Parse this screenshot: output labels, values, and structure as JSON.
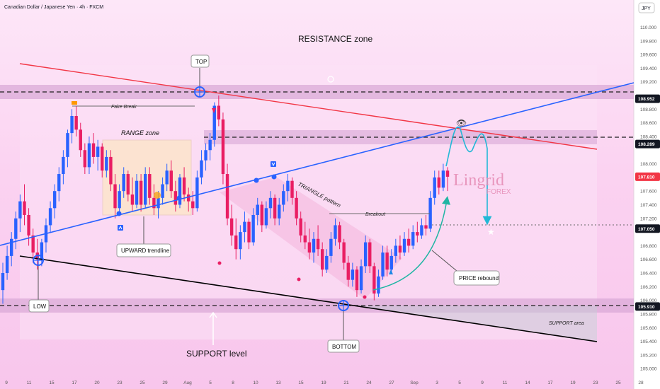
{
  "header": {
    "symbol_title": "Canadian Dollar / Japanese Yen · 4h · FXCM",
    "currency": "JPY"
  },
  "chart_data": {
    "type": "candlestick",
    "title": "Canadian Dollar / Japanese Yen · 4h · FXCM",
    "ylim": [
      104.95,
      110.15
    ],
    "y_ticks": [
      "110.000",
      "109.800",
      "109.600",
      "109.400",
      "109.200",
      "108.800",
      "108.600",
      "108.400",
      "108.000",
      "107.800",
      "107.600",
      "107.400",
      "107.200",
      "106.800",
      "106.600",
      "106.400",
      "106.200",
      "106.000",
      "105.800",
      "105.600",
      "105.400",
      "105.200",
      "105.000"
    ],
    "x_ticks": [
      "9",
      "11",
      "15",
      "17",
      "20",
      "23",
      "25",
      "29",
      "Aug",
      "5",
      "8",
      "10",
      "13",
      "15",
      "19",
      "21",
      "24",
      "27",
      "Sep",
      "3",
      "5",
      "9",
      "11",
      "14",
      "17",
      "19",
      "23",
      "25",
      "28"
    ],
    "price_badges": [
      {
        "label": "108.952",
        "value": 108.952,
        "color": "#131722"
      },
      {
        "label": "108.289",
        "value": 108.289,
        "color": "#131722"
      },
      {
        "label": "107.810",
        "value": 107.81,
        "color": "#f23645"
      },
      {
        "label": "107.050",
        "value": 107.05,
        "color": "#131722"
      },
      {
        "label": "105.910",
        "value": 105.91,
        "color": "#131722"
      }
    ],
    "bull_color": "#2962ff",
    "bear_color": "#e91e63",
    "candles": [
      [
        106.15,
        106.55,
        105.95,
        106.4
      ],
      [
        106.4,
        106.8,
        106.3,
        106.65
      ],
      [
        106.65,
        107.0,
        106.5,
        106.9
      ],
      [
        106.9,
        107.3,
        106.75,
        107.2
      ],
      [
        107.2,
        107.55,
        107.0,
        107.45
      ],
      [
        107.45,
        107.7,
        107.1,
        107.25
      ],
      [
        107.25,
        107.35,
        106.8,
        106.95
      ],
      [
        106.95,
        107.05,
        106.55,
        106.7
      ],
      [
        106.7,
        106.9,
        106.45,
        106.6
      ],
      [
        106.6,
        106.9,
        106.5,
        106.85
      ],
      [
        106.85,
        107.2,
        106.7,
        107.1
      ],
      [
        107.1,
        107.45,
        107.0,
        107.35
      ],
      [
        107.35,
        107.7,
        107.2,
        107.6
      ],
      [
        107.6,
        107.95,
        107.45,
        107.85
      ],
      [
        107.85,
        108.2,
        107.7,
        108.1
      ],
      [
        108.1,
        108.5,
        107.95,
        108.45
      ],
      [
        108.45,
        108.8,
        108.3,
        108.7
      ],
      [
        108.7,
        108.85,
        108.4,
        108.5
      ],
      [
        108.5,
        108.6,
        108.1,
        108.2
      ],
      [
        108.2,
        108.3,
        107.85,
        107.95
      ],
      [
        107.95,
        108.4,
        107.85,
        108.3
      ],
      [
        108.3,
        108.45,
        108.0,
        108.1
      ],
      [
        108.1,
        108.35,
        107.9,
        108.25
      ],
      [
        108.25,
        108.3,
        107.8,
        107.9
      ],
      [
        107.9,
        108.2,
        107.8,
        108.1
      ],
      [
        108.1,
        108.2,
        107.6,
        107.7
      ],
      [
        107.7,
        107.85,
        107.2,
        107.35
      ],
      [
        107.35,
        107.7,
        107.25,
        107.6
      ],
      [
        107.6,
        107.95,
        107.5,
        107.85
      ],
      [
        107.85,
        107.9,
        107.45,
        107.55
      ],
      [
        107.55,
        107.8,
        107.3,
        107.4
      ],
      [
        107.4,
        107.85,
        107.35,
        107.75
      ],
      [
        107.75,
        107.85,
        107.3,
        107.4
      ],
      [
        107.4,
        107.95,
        107.35,
        107.85
      ],
      [
        107.85,
        107.95,
        107.4,
        107.5
      ],
      [
        107.5,
        107.7,
        107.25,
        107.35
      ],
      [
        107.35,
        107.6,
        107.2,
        107.5
      ],
      [
        107.5,
        107.8,
        107.4,
        107.7
      ],
      [
        107.7,
        108.0,
        107.6,
        107.9
      ],
      [
        107.9,
        108.05,
        107.5,
        107.6
      ],
      [
        107.6,
        107.75,
        107.3,
        107.4
      ],
      [
        107.4,
        107.85,
        107.35,
        107.8
      ],
      [
        107.8,
        107.95,
        107.45,
        107.55
      ],
      [
        107.55,
        107.65,
        107.3,
        107.45
      ],
      [
        107.45,
        107.6,
        107.25,
        107.35
      ],
      [
        107.35,
        107.9,
        107.3,
        107.8
      ],
      [
        107.8,
        108.2,
        107.7,
        108.05
      ],
      [
        108.05,
        108.3,
        107.9,
        108.2
      ],
      [
        108.2,
        108.45,
        108.05,
        108.35
      ],
      [
        108.35,
        108.9,
        108.25,
        108.85
      ],
      [
        108.85,
        109.0,
        108.55,
        108.65
      ],
      [
        108.65,
        108.75,
        107.7,
        107.85
      ],
      [
        107.85,
        108.0,
        107.1,
        107.2
      ],
      [
        107.2,
        107.4,
        106.8,
        106.95
      ],
      [
        106.95,
        107.2,
        106.6,
        106.75
      ],
      [
        106.75,
        107.1,
        106.6,
        107.0
      ],
      [
        107.0,
        107.3,
        106.85,
        107.15
      ],
      [
        107.15,
        107.2,
        106.75,
        106.85
      ],
      [
        106.85,
        107.35,
        106.8,
        107.25
      ],
      [
        107.25,
        107.5,
        107.1,
        107.4
      ],
      [
        107.4,
        107.45,
        107.0,
        107.1
      ],
      [
        107.1,
        107.45,
        107.05,
        107.35
      ],
      [
        107.35,
        107.6,
        107.2,
        107.5
      ],
      [
        107.5,
        107.55,
        107.1,
        107.2
      ],
      [
        107.2,
        107.5,
        107.1,
        107.4
      ],
      [
        107.4,
        107.7,
        107.3,
        107.6
      ],
      [
        107.6,
        107.85,
        107.45,
        107.75
      ],
      [
        107.75,
        107.8,
        107.4,
        107.5
      ],
      [
        107.5,
        107.6,
        107.1,
        107.2
      ],
      [
        107.2,
        107.3,
        106.85,
        106.95
      ],
      [
        106.95,
        107.15,
        106.75,
        106.85
      ],
      [
        106.85,
        107.05,
        106.6,
        106.7
      ],
      [
        106.7,
        107.0,
        106.55,
        106.9
      ],
      [
        106.9,
        107.1,
        106.65,
        106.75
      ],
      [
        106.75,
        106.85,
        106.35,
        106.45
      ],
      [
        106.45,
        106.75,
        106.4,
        106.65
      ],
      [
        106.65,
        107.0,
        106.55,
        106.9
      ],
      [
        106.9,
        107.2,
        106.8,
        107.1
      ],
      [
        107.1,
        107.15,
        106.75,
        106.85
      ],
      [
        106.85,
        106.9,
        106.45,
        106.55
      ],
      [
        106.55,
        106.65,
        106.2,
        106.3
      ],
      [
        106.3,
        106.55,
        106.2,
        106.45
      ],
      [
        106.45,
        106.5,
        106.05,
        106.15
      ],
      [
        106.15,
        106.6,
        106.1,
        106.5
      ],
      [
        106.5,
        106.95,
        106.4,
        106.85
      ],
      [
        106.85,
        106.9,
        106.4,
        106.5
      ],
      [
        106.5,
        106.55,
        106.0,
        106.1
      ],
      [
        106.1,
        106.45,
        106.05,
        106.35
      ],
      [
        106.35,
        106.8,
        106.3,
        106.7
      ],
      [
        106.7,
        106.8,
        106.35,
        106.45
      ],
      [
        106.45,
        106.75,
        106.4,
        106.65
      ],
      [
        106.65,
        106.9,
        106.55,
        106.8
      ],
      [
        106.8,
        106.95,
        106.6,
        106.7
      ],
      [
        106.7,
        107.0,
        106.65,
        106.9
      ],
      [
        106.9,
        107.05,
        106.7,
        106.8
      ],
      [
        106.8,
        107.1,
        106.75,
        107.0
      ],
      [
        107.0,
        107.15,
        106.85,
        106.95
      ],
      [
        106.95,
        107.2,
        106.9,
        107.1
      ],
      [
        107.1,
        107.25,
        106.95,
        107.05
      ],
      [
        107.05,
        107.6,
        107.0,
        107.5
      ],
      [
        107.5,
        107.9,
        107.4,
        107.8
      ],
      [
        107.8,
        107.9,
        107.55,
        107.65
      ],
      [
        107.65,
        108.0,
        107.6,
        107.9
      ],
      [
        107.9,
        107.95,
        107.6,
        107.81
      ]
    ],
    "trendlines": [
      {
        "name": "upward-trendline",
        "color": "#2962ff",
        "from": [
          0,
          106.75
        ],
        "to": [
          932,
          108.95
        ]
      },
      {
        "name": "descending-resistance-line",
        "color": "#f23645",
        "from": [
          28,
          109.55
        ],
        "to": [
          843,
          108.1
        ]
      },
      {
        "name": "support-line",
        "color": "#000000",
        "from": [
          28,
          106.55
        ],
        "to": [
          843,
          105.4
        ]
      }
    ],
    "annotations": {
      "resistance_zone": "RESISTANCE zone",
      "top": "TOP",
      "fake_break": "Fake Break",
      "range_zone": "RANGE zone",
      "upward_trendline": "UPWARD trendline",
      "triangle_pattern": "TRIANGLE pattern",
      "breakout": "Breakout",
      "price_rebound": "PRICE rebound",
      "support_area": "SUPPORT area",
      "support_level": "SUPPORT level",
      "low": "LOW",
      "bottom": "BOTTOM",
      "logo_main": "Lingrid",
      "logo_sub": "FOREX"
    }
  }
}
